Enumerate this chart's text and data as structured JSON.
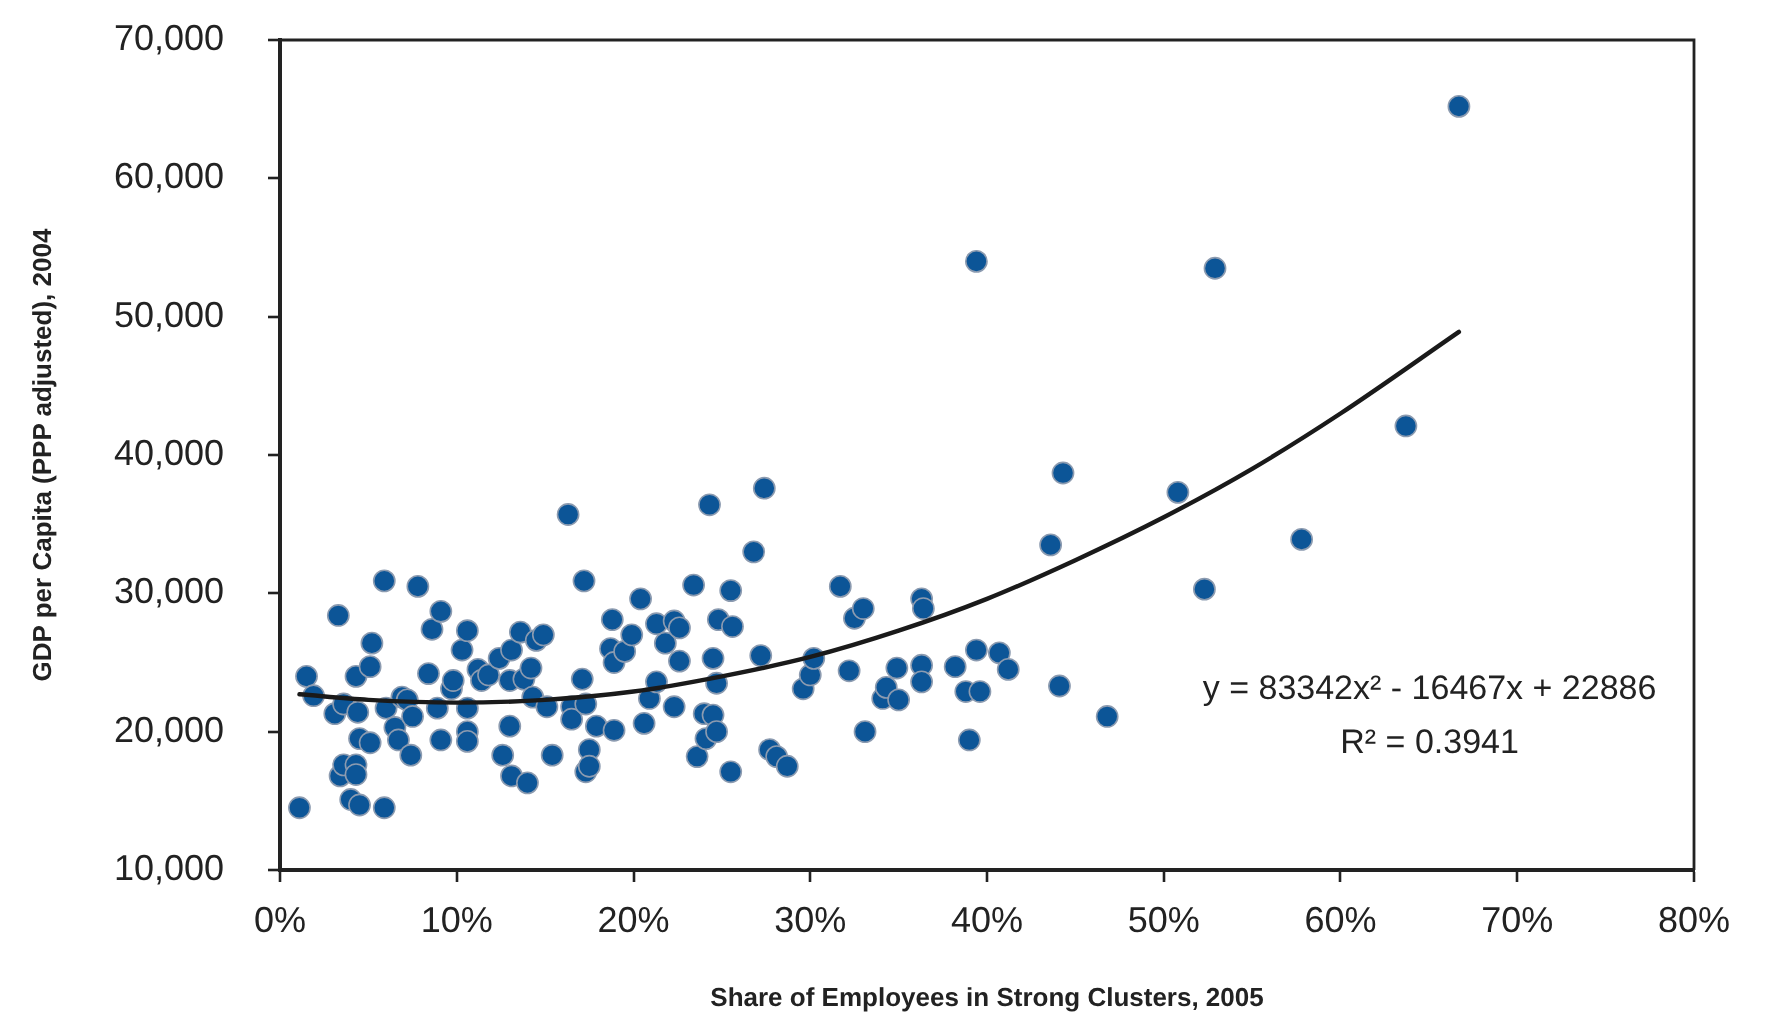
{
  "chart_data": {
    "type": "scatter",
    "xlabel": "Share of Employees in Strong Clusters, 2005",
    "ylabel": "GDP per Capita (PPP adjusted), 2004",
    "xlim": [
      0,
      0.8
    ],
    "xticks": [
      {
        "value": 0,
        "label": "0%"
      },
      {
        "value": 0.1,
        "label": "10%"
      },
      {
        "value": 0.2,
        "label": "20%"
      },
      {
        "value": 0.3,
        "label": "30%"
      },
      {
        "value": 0.4,
        "label": "40%"
      },
      {
        "value": 0.5,
        "label": "50%"
      },
      {
        "value": 0.6,
        "label": "60%"
      },
      {
        "value": 0.7,
        "label": "70%"
      },
      {
        "value": 0.8,
        "label": "80%"
      }
    ],
    "ylim": [
      10000,
      70000
    ],
    "yticks": [
      {
        "value": 10000,
        "label": "10,000"
      },
      {
        "value": 20000,
        "label": "20,000"
      },
      {
        "value": 30000,
        "label": "30,000"
      },
      {
        "value": 40000,
        "label": "40,000"
      },
      {
        "value": 50000,
        "label": "50,000"
      },
      {
        "value": 60000,
        "label": "60,000"
      },
      {
        "value": 70000,
        "label": "70,000"
      }
    ],
    "grid": false,
    "legend": false,
    "marker": "circle",
    "annotations": [
      "y = 83342x² - 16467x + 22886",
      "R² = 0.3941"
    ],
    "series": [
      {
        "type": "scatter",
        "color": "#0c5597",
        "x": [
          0.011,
          0.015,
          0.019,
          0.031,
          0.033,
          0.034,
          0.036,
          0.036,
          0.04,
          0.043,
          0.043,
          0.043,
          0.044,
          0.045,
          0.045,
          0.051,
          0.051,
          0.052,
          0.059,
          0.059,
          0.06,
          0.065,
          0.067,
          0.069,
          0.072,
          0.074,
          0.075,
          0.078,
          0.084,
          0.086,
          0.089,
          0.091,
          0.091,
          0.097,
          0.098,
          0.103,
          0.106,
          0.106,
          0.106,
          0.106,
          0.112,
          0.114,
          0.118,
          0.124,
          0.126,
          0.13,
          0.13,
          0.131,
          0.131,
          0.136,
          0.138,
          0.14,
          0.142,
          0.143,
          0.145,
          0.149,
          0.151,
          0.154,
          0.163,
          0.165,
          0.165,
          0.171,
          0.172,
          0.173,
          0.173,
          0.175,
          0.175,
          0.179,
          0.187,
          0.188,
          0.189,
          0.189,
          0.195,
          0.199,
          0.204,
          0.206,
          0.209,
          0.213,
          0.213,
          0.218,
          0.223,
          0.223,
          0.226,
          0.226,
          0.234,
          0.236,
          0.24,
          0.241,
          0.243,
          0.245,
          0.245,
          0.247,
          0.247,
          0.248,
          0.255,
          0.255,
          0.256,
          0.268,
          0.272,
          0.274,
          0.277,
          0.281,
          0.287,
          0.296,
          0.3,
          0.302,
          0.317,
          0.322,
          0.325,
          0.33,
          0.331,
          0.341,
          0.343,
          0.349,
          0.35,
          0.363,
          0.363,
          0.363,
          0.364,
          0.382,
          0.388,
          0.39,
          0.394,
          0.394,
          0.396,
          0.407,
          0.412,
          0.436,
          0.441,
          0.443,
          0.468,
          0.508,
          0.523,
          0.529,
          0.578,
          0.637,
          0.667
        ],
        "values": [
          14500,
          24000,
          22600,
          21300,
          28400,
          16800,
          22000,
          17600,
          15100,
          24000,
          17600,
          16900,
          21400,
          19500,
          14700,
          24700,
          19200,
          26400,
          30900,
          14500,
          21700,
          20300,
          19400,
          22500,
          22300,
          18300,
          21100,
          30500,
          24200,
          27400,
          21700,
          28700,
          19400,
          23100,
          23700,
          25900,
          27300,
          21700,
          20000,
          19300,
          24500,
          23700,
          24100,
          25300,
          18300,
          20400,
          23700,
          25900,
          16800,
          27200,
          23800,
          16300,
          24600,
          22500,
          26600,
          27000,
          21800,
          18300,
          35700,
          21800,
          20900,
          23800,
          30900,
          22000,
          17100,
          18700,
          17500,
          20400,
          26000,
          28100,
          25000,
          20100,
          25800,
          27000,
          29600,
          20600,
          22400,
          23600,
          27800,
          26400,
          28000,
          21800,
          27500,
          25100,
          30600,
          18200,
          21300,
          19500,
          36400,
          25300,
          21200,
          23500,
          20000,
          28100,
          30200,
          17100,
          27600,
          33000,
          25500,
          37600,
          18700,
          18200,
          17500,
          23100,
          24100,
          25300,
          30500,
          24400,
          28200,
          28900,
          20000,
          22400,
          23200,
          24600,
          22300,
          29600,
          24800,
          23600,
          28900,
          24700,
          22900,
          19400,
          54000,
          25900,
          22900,
          25700,
          24500,
          33500,
          23300,
          38700,
          21100,
          37300,
          30300,
          53500,
          33900,
          42100,
          65200
        ]
      },
      {
        "type": "line",
        "color": "#1a1a1a",
        "marker": "none",
        "line_style": "solid",
        "x": [
          0.011,
          0.05,
          0.1,
          0.15,
          0.2,
          0.25,
          0.3,
          0.35,
          0.4,
          0.45,
          0.5,
          0.55,
          0.6,
          0.667
        ],
        "values": [
          22700,
          22300,
          22100,
          22300,
          22900,
          24000,
          25400,
          27300,
          29600,
          32400,
          35500,
          39000,
          43000,
          48900
        ]
      }
    ]
  }
}
